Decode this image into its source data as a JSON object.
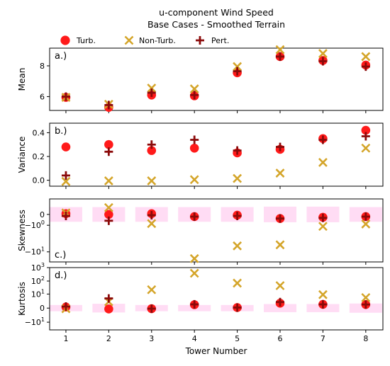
{
  "chart_data": {
    "type": "scatter",
    "title": "u-component Wind Speed",
    "subtitle": "Base Cases - Smoothed Terrain",
    "xlabel": "Tower Number",
    "x": [
      1,
      2,
      3,
      4,
      5,
      6,
      7,
      8
    ],
    "legend": {
      "placement": "top",
      "entries": [
        {
          "name": "Turb.",
          "color": "#ff1a1a",
          "marker": "circle"
        },
        {
          "name": "Non-Turb.",
          "color": "#d4a52a",
          "marker": "x"
        },
        {
          "name": "Pert.",
          "color": "#8b0a0a",
          "marker": "plus"
        }
      ]
    },
    "panels": [
      {
        "label": "a.)",
        "ylabel": "Mean",
        "scale": "linear",
        "ylim": [
          5.1,
          9.15
        ],
        "yticks": [
          {
            "v": 6,
            "t": "6"
          },
          {
            "v": 8,
            "t": "8"
          }
        ],
        "series": [
          {
            "name": "Turb.",
            "values": [
              5.95,
              5.3,
              6.1,
              6.05,
              7.55,
              8.6,
              8.35,
              8.05
            ]
          },
          {
            "name": "Non-Turb.",
            "values": [
              5.95,
              5.5,
              6.55,
              6.5,
              7.95,
              9.05,
              8.8,
              8.6
            ]
          },
          {
            "name": "Pert.",
            "values": [
              6.0,
              5.45,
              6.25,
              6.1,
              7.65,
              8.6,
              8.3,
              7.95
            ]
          }
        ]
      },
      {
        "label": "b.)",
        "ylabel": "Variance",
        "scale": "linear",
        "ylim": [
          -0.05,
          0.48
        ],
        "yticks": [
          {
            "v": 0.0,
            "t": "0.0"
          },
          {
            "v": 0.2,
            "t": "0.2"
          },
          {
            "v": 0.4,
            "t": "0.4"
          }
        ],
        "series": [
          {
            "name": "Turb.",
            "values": [
              0.28,
              0.3,
              0.25,
              0.27,
              0.23,
              0.26,
              0.35,
              0.42
            ]
          },
          {
            "name": "Non-Turb.",
            "values": [
              -0.01,
              -0.005,
              -0.005,
              0.005,
              0.015,
              0.06,
              0.15,
              0.27
            ]
          },
          {
            "name": "Pert.",
            "values": [
              0.04,
              0.24,
              0.3,
              0.34,
              0.25,
              0.28,
              0.34,
              0.37
            ]
          }
        ]
      },
      {
        "label": "c.)",
        "ylabel": "Skewness",
        "scale": "symlog",
        "ylim": [
          -20,
          1.7
        ],
        "yticks": [
          {
            "v": 0,
            "t": "0"
          },
          {
            "v": -1,
            "t": "−10",
            "sup": "0"
          },
          {
            "v": -10,
            "t": "−10",
            "sup": "1"
          }
        ],
        "bands": [
          0.6,
          0.6,
          0.6,
          0.6,
          0.6,
          0.65,
          0.65,
          0.6
        ],
        "series": [
          {
            "name": "Turb.",
            "values": [
              0.05,
              0.0,
              0.05,
              -0.15,
              -0.05,
              -0.3,
              -0.2,
              -0.15
            ]
          },
          {
            "name": "Non-Turb.",
            "values": [
              0.1,
              0.55,
              -0.8,
              -16,
              -6.5,
              -6,
              -1.15,
              -0.85
            ]
          },
          {
            "name": "Pert.",
            "values": [
              -0.1,
              -0.5,
              -0.05,
              -0.15,
              -0.1,
              -0.3,
              -0.25,
              -0.15
            ]
          }
        ]
      },
      {
        "label": "d.)",
        "ylabel": "Kurtosis",
        "scale": "symlog",
        "ylim": [
          -40,
          1000
        ],
        "yticks": [
          {
            "v": 1000,
            "t": "10",
            "sup": "3"
          },
          {
            "v": 100,
            "t": "10",
            "sup": "2"
          },
          {
            "v": 10,
            "t": "10",
            "sup": "1"
          },
          {
            "v": 0,
            "t": "0"
          },
          {
            "v": -10,
            "t": "−10",
            "sup": "1"
          }
        ],
        "bands": [
          0.7,
          1.1,
          0.7,
          0.7,
          0.7,
          1.0,
          1.0,
          1.2
        ],
        "series": [
          {
            "name": "Turb.",
            "values": [
              0.2,
              -0.15,
              -0.1,
              0.8,
              0.1,
              1.3,
              0.9,
              0.85
            ]
          },
          {
            "name": "Non-Turb.",
            "values": [
              -0.1,
              2.0,
              22,
              380,
              70,
              45,
              9,
              5
            ]
          },
          {
            "name": "Pert.",
            "values": [
              0.3,
              4.2,
              -0.1,
              0.9,
              0.1,
              1.8,
              0.9,
              0.85
            ]
          }
        ]
      }
    ]
  }
}
